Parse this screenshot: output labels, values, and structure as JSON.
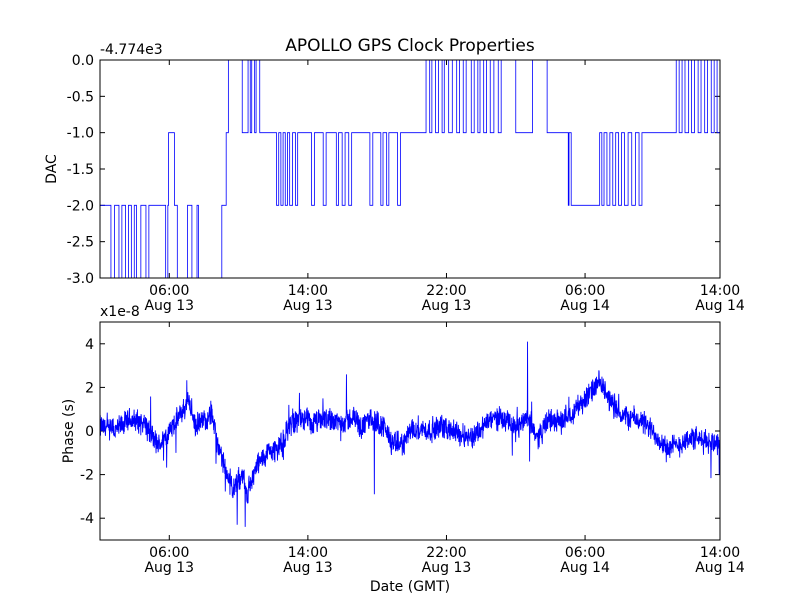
{
  "chart_data": [
    {
      "type": "line",
      "title": "APOLLO GPS Clock Properties",
      "offset_label": "-4.774e3",
      "ylabel": "DAC",
      "xlabel": "",
      "ylim": [
        -3.0,
        0.0
      ],
      "xlim_hours": [
        0,
        85
      ],
      "color": "#0000ff",
      "y_ticks": [
        {
          "value": 0.0,
          "label": "0.0"
        },
        {
          "value": -0.5,
          "label": "-0.5"
        },
        {
          "value": -1.0,
          "label": "-1.0"
        },
        {
          "value": -1.5,
          "label": "-1.5"
        },
        {
          "value": -2.0,
          "label": "-2.0"
        },
        {
          "value": -2.5,
          "label": "-2.5"
        },
        {
          "value": -3.0,
          "label": "-3.0"
        }
      ],
      "x_ticks": [
        {
          "hour": 9.5,
          "time": "06:00",
          "date": "Aug 13"
        },
        {
          "hour": 28.5,
          "time": "14:00",
          "date": "Aug 13"
        },
        {
          "hour": 47.5,
          "time": "22:00",
          "date": "Aug 13"
        },
        {
          "hour": 66.5,
          "time": "06:00",
          "date": "Aug 14"
        },
        {
          "hour": 85.0,
          "time": "14:00",
          "date": "Aug 14"
        }
      ],
      "series": [
        {
          "name": "DAC",
          "steps": [
            [
              0,
              -2.0
            ],
            [
              1.5,
              -3.0
            ],
            [
              2.0,
              -2.0
            ],
            [
              2.6,
              -3.0
            ],
            [
              3.0,
              -2.0
            ],
            [
              3.5,
              -3.0
            ],
            [
              3.9,
              -2.0
            ],
            [
              4.3,
              -3.0
            ],
            [
              4.7,
              -2.0
            ],
            [
              5.0,
              -3.0
            ],
            [
              5.6,
              -2.0
            ],
            [
              6.3,
              -3.0
            ],
            [
              6.7,
              -2.0
            ],
            [
              9.0,
              -3.0
            ],
            [
              9.3,
              -2.0
            ],
            [
              9.4,
              -1.0
            ],
            [
              10.2,
              -2.0
            ],
            [
              10.6,
              -3.0
            ],
            [
              12.0,
              -2.0
            ],
            [
              12.6,
              -3.0
            ],
            [
              13.3,
              -2.0
            ],
            [
              13.5,
              -3.0
            ],
            [
              16.7,
              -2.0
            ],
            [
              17.3,
              -1.0
            ],
            [
              17.6,
              0.0
            ],
            [
              19.5,
              -1.0
            ],
            [
              20.3,
              0.0
            ],
            [
              20.6,
              -1.0
            ],
            [
              20.8,
              0.0
            ],
            [
              21.2,
              -1.0
            ],
            [
              21.4,
              0.0
            ],
            [
              21.9,
              -1.0
            ],
            [
              24.2,
              -2.0
            ],
            [
              24.5,
              -1.0
            ],
            [
              24.8,
              -2.0
            ],
            [
              25.1,
              -1.0
            ],
            [
              25.4,
              -2.0
            ],
            [
              25.7,
              -1.0
            ],
            [
              26.0,
              -2.0
            ],
            [
              26.4,
              -1.0
            ],
            [
              26.8,
              -2.0
            ],
            [
              27.1,
              -1.0
            ],
            [
              29.0,
              -2.0
            ],
            [
              29.4,
              -1.0
            ],
            [
              30.6,
              -2.0
            ],
            [
              31.0,
              -1.0
            ],
            [
              32.4,
              -2.0
            ],
            [
              32.7,
              -1.0
            ],
            [
              33.2,
              -2.0
            ],
            [
              33.6,
              -1.0
            ],
            [
              34.1,
              -2.0
            ],
            [
              34.5,
              -1.0
            ],
            [
              37.0,
              -2.0
            ],
            [
              37.4,
              -1.0
            ],
            [
              38.5,
              -2.0
            ],
            [
              38.8,
              -1.0
            ],
            [
              39.3,
              -2.0
            ],
            [
              39.6,
              -1.0
            ],
            [
              40.8,
              -2.0
            ],
            [
              41.2,
              -1.0
            ],
            [
              44.7,
              0.0
            ],
            [
              45.2,
              -1.0
            ],
            [
              45.5,
              0.0
            ],
            [
              46.0,
              -1.0
            ],
            [
              46.4,
              0.0
            ],
            [
              46.9,
              -1.0
            ],
            [
              47.2,
              0.0
            ],
            [
              47.8,
              -1.0
            ],
            [
              48.3,
              0.0
            ],
            [
              48.9,
              -1.0
            ],
            [
              49.3,
              0.0
            ],
            [
              49.8,
              -1.0
            ],
            [
              50.2,
              0.0
            ],
            [
              50.9,
              -1.0
            ],
            [
              51.3,
              0.0
            ],
            [
              51.8,
              -1.0
            ],
            [
              52.1,
              0.0
            ],
            [
              52.6,
              -1.0
            ],
            [
              53.0,
              0.0
            ],
            [
              53.5,
              -1.0
            ],
            [
              54.0,
              0.0
            ],
            [
              54.6,
              -1.0
            ],
            [
              55.0,
              0.0
            ],
            [
              57.0,
              -1.0
            ],
            [
              59.3,
              0.0
            ],
            [
              61.3,
              -1.0
            ],
            [
              64.2,
              -2.0
            ],
            [
              64.3,
              -1.0
            ],
            [
              64.6,
              -2.0
            ],
            [
              68.5,
              -1.0
            ],
            [
              68.8,
              -2.0
            ],
            [
              69.1,
              -1.0
            ],
            [
              69.5,
              -2.0
            ],
            [
              69.9,
              -1.0
            ],
            [
              70.3,
              -2.0
            ],
            [
              70.7,
              -1.0
            ],
            [
              71.1,
              -2.0
            ],
            [
              71.5,
              -1.0
            ],
            [
              71.9,
              -2.0
            ],
            [
              72.4,
              -1.0
            ],
            [
              72.9,
              -2.0
            ],
            [
              73.4,
              -1.0
            ],
            [
              73.9,
              -2.0
            ],
            [
              74.3,
              -1.0
            ],
            [
              79.0,
              0.0
            ],
            [
              79.4,
              -1.0
            ],
            [
              79.8,
              0.0
            ],
            [
              80.2,
              -1.0
            ],
            [
              80.7,
              0.0
            ],
            [
              81.1,
              -1.0
            ],
            [
              81.5,
              0.0
            ],
            [
              82.0,
              -1.0
            ],
            [
              82.4,
              0.0
            ],
            [
              82.9,
              -1.0
            ],
            [
              83.3,
              0.0
            ],
            [
              83.8,
              -1.0
            ],
            [
              84.2,
              0.0
            ],
            [
              84.6,
              -1.0
            ],
            [
              85.0,
              -1.0
            ]
          ]
        }
      ]
    },
    {
      "type": "line",
      "title": "",
      "offset_label": "x1e-8",
      "ylabel": "Phase (s)",
      "xlabel": "Date (GMT)",
      "ylim": [
        -5,
        5
      ],
      "xlim_hours": [
        0,
        85
      ],
      "color": "#0000ff",
      "y_ticks": [
        {
          "value": 4,
          "label": "4"
        },
        {
          "value": 2,
          "label": "2"
        },
        {
          "value": 0,
          "label": "0"
        },
        {
          "value": -2,
          "label": "-2"
        },
        {
          "value": -4,
          "label": "-4"
        }
      ],
      "x_ticks": [
        {
          "hour": 9.5,
          "time": "06:00",
          "date": "Aug 13"
        },
        {
          "hour": 28.5,
          "time": "14:00",
          "date": "Aug 13"
        },
        {
          "hour": 47.5,
          "time": "22:00",
          "date": "Aug 13"
        },
        {
          "hour": 66.5,
          "time": "06:00",
          "date": "Aug 14"
        },
        {
          "hour": 85.0,
          "time": "14:00",
          "date": "Aug 14"
        }
      ],
      "series": [
        {
          "name": "Phase",
          "keypoints": [
            [
              0,
              0.2
            ],
            [
              2,
              0.0
            ],
            [
              4,
              0.5
            ],
            [
              6,
              0.4
            ],
            [
              8,
              -0.7
            ],
            [
              10,
              0.2
            ],
            [
              11.5,
              1.0
            ],
            [
              12.2,
              1.5
            ],
            [
              13,
              0.2
            ],
            [
              14,
              0.4
            ],
            [
              15.3,
              0.9
            ],
            [
              16.2,
              -0.8
            ],
            [
              17.4,
              -2.0
            ],
            [
              18.4,
              -2.7
            ],
            [
              19.5,
              -1.9
            ],
            [
              20.1,
              -2.9
            ],
            [
              21.5,
              -1.6
            ],
            [
              23,
              -1.0
            ],
            [
              25,
              -0.6
            ],
            [
              26,
              0.3
            ],
            [
              27.5,
              0.6
            ],
            [
              29,
              0.3
            ],
            [
              31,
              0.6
            ],
            [
              33,
              0.4
            ],
            [
              35,
              0.6
            ],
            [
              36,
              0.1
            ],
            [
              37,
              0.6
            ],
            [
              39,
              0.2
            ],
            [
              40,
              -0.6
            ],
            [
              41.5,
              -0.6
            ],
            [
              43,
              0.2
            ],
            [
              45,
              0.0
            ],
            [
              47,
              0.2
            ],
            [
              49,
              -0.1
            ],
            [
              51,
              -0.3
            ],
            [
              53,
              0.4
            ],
            [
              55,
              0.7
            ],
            [
              57,
              0.0
            ],
            [
              58.5,
              0.7
            ],
            [
              60,
              -0.3
            ],
            [
              61.5,
              0.5
            ],
            [
              63,
              0.4
            ],
            [
              64.5,
              0.8
            ],
            [
              66,
              1.3
            ],
            [
              68.5,
              2.2
            ],
            [
              70,
              1.4
            ],
            [
              71.5,
              0.7
            ],
            [
              73,
              0.6
            ],
            [
              74.5,
              0.4
            ],
            [
              76.5,
              -0.3
            ],
            [
              78,
              -0.8
            ],
            [
              79.5,
              -0.6
            ],
            [
              81,
              -0.3
            ],
            [
              83,
              -0.5
            ],
            [
              85,
              -0.5
            ]
          ],
          "noise_amplitude": 0.45,
          "spikes": [
            {
              "hour": 15.9,
              "value": -1.5
            },
            {
              "hour": 18.8,
              "value": -4.3
            },
            {
              "hour": 19.9,
              "value": -4.4
            },
            {
              "hour": 25.9,
              "value": 1.2
            },
            {
              "hour": 33.8,
              "value": 2.6
            },
            {
              "hour": 37.6,
              "value": -2.9
            },
            {
              "hour": 58.6,
              "value": 4.1
            },
            {
              "hour": 58.9,
              "value": -1.4
            },
            {
              "hour": 84.9,
              "value": -2.0
            }
          ]
        }
      ]
    }
  ]
}
